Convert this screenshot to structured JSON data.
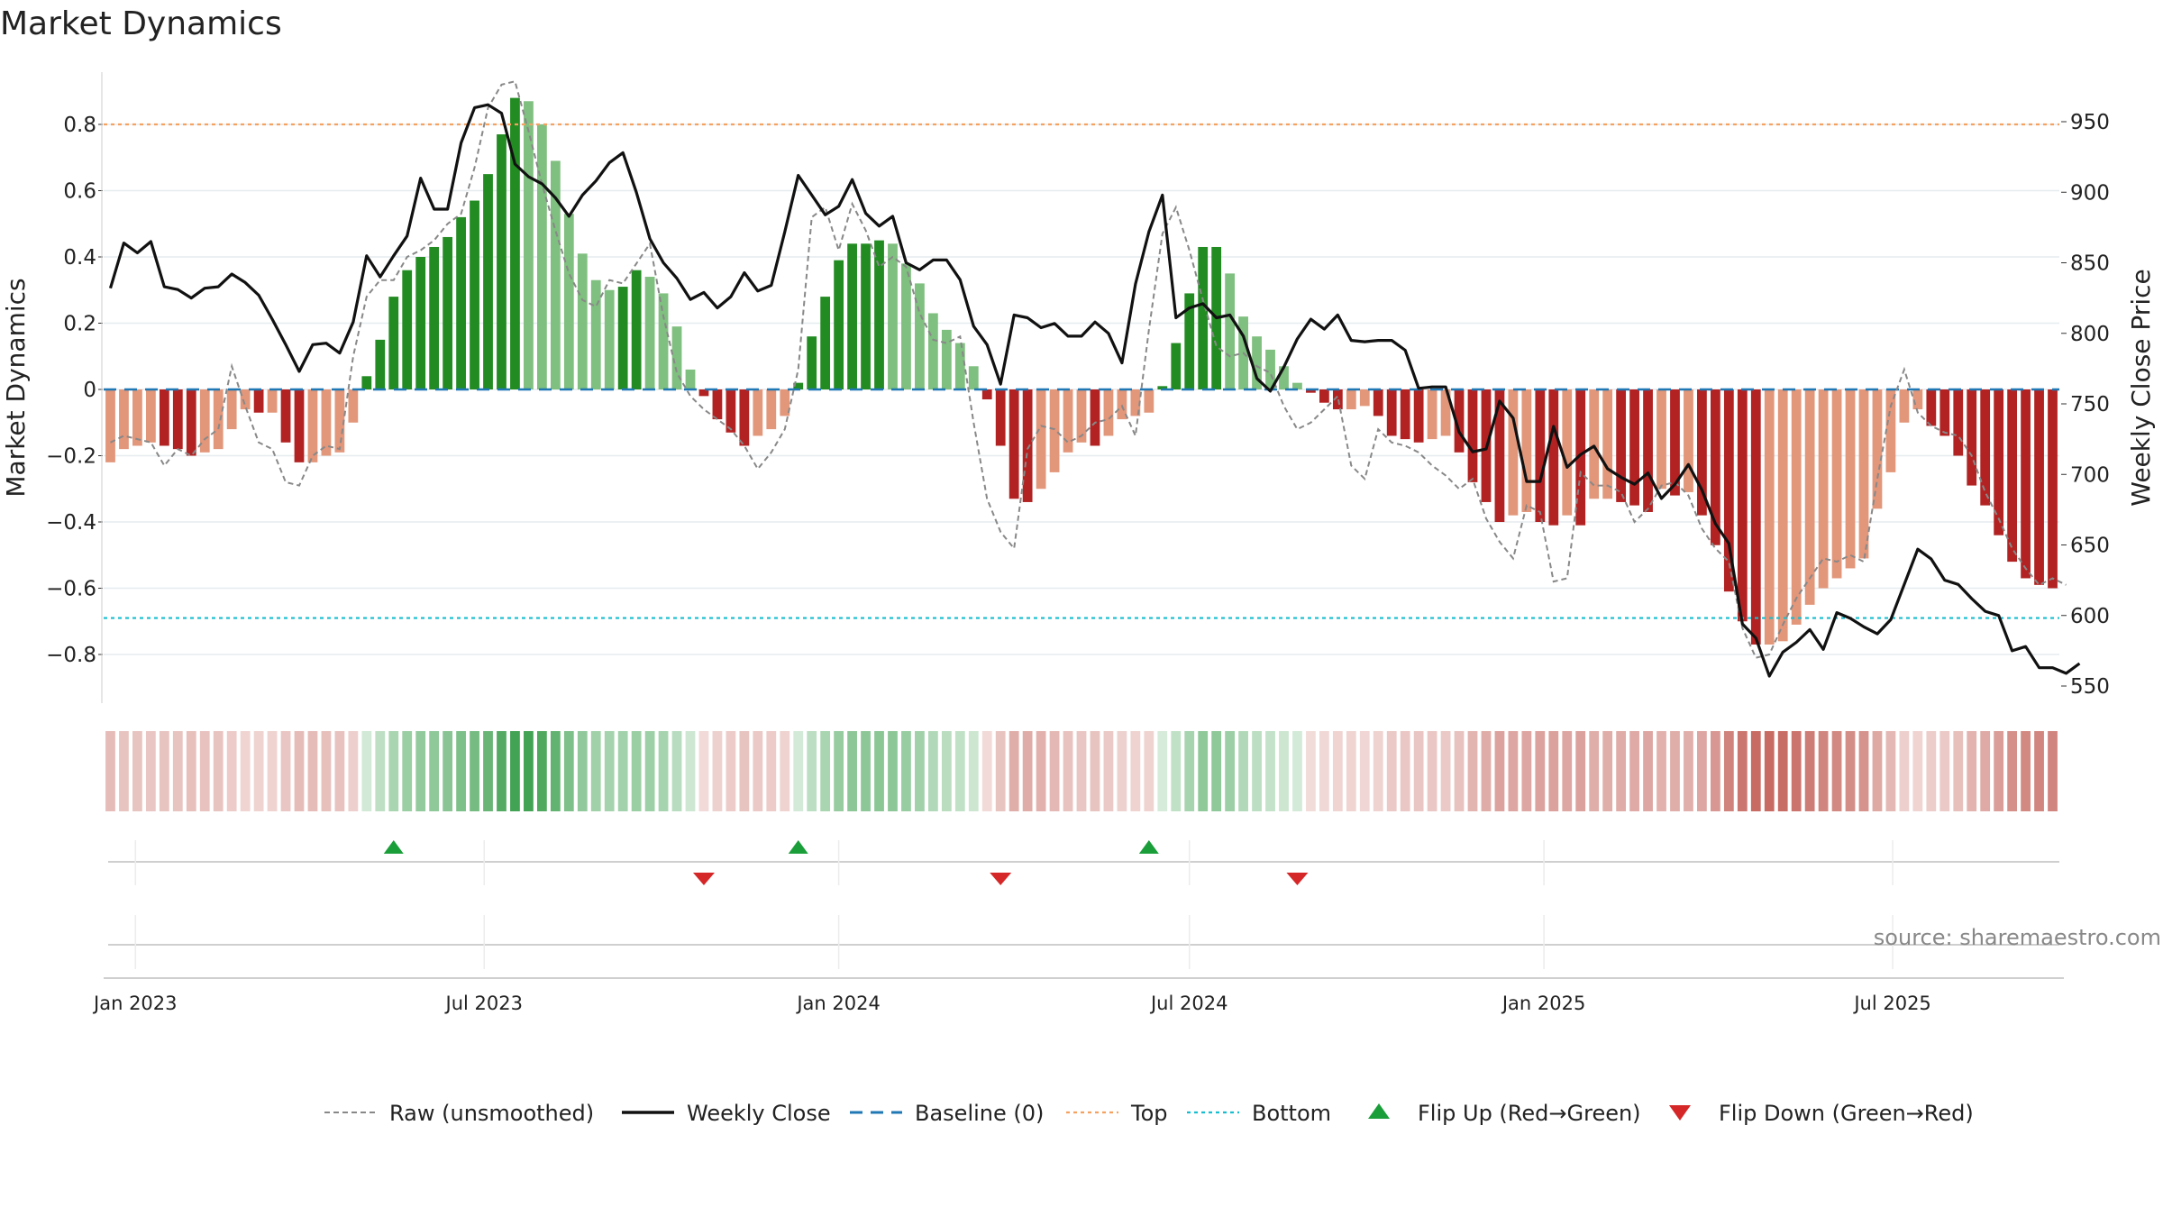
{
  "title": "Market Dynamics",
  "source": "source: sharemaestro.com",
  "chart_data": {
    "type": "bar",
    "title": "Market Dynamics",
    "ylabel": "Market Dynamics",
    "y2label": "Weekly Close Price",
    "ylim": [
      -0.95,
      0.95
    ],
    "y2lim": [
      535,
      985
    ],
    "yticks": [
      "−0.8",
      "−0.6",
      "−0.4",
      "−0.2",
      "0",
      "0.2",
      "0.4",
      "0.6",
      "0.8"
    ],
    "yticks_values": [
      -0.8,
      -0.6,
      -0.4,
      -0.2,
      0,
      0.2,
      0.4,
      0.6,
      0.8
    ],
    "y2ticks": [
      "550",
      "600",
      "650",
      "700",
      "750",
      "800",
      "850",
      "900",
      "950"
    ],
    "y2ticks_values": [
      550,
      600,
      650,
      700,
      750,
      800,
      850,
      900,
      950
    ],
    "xticks": [
      "Jan 2023",
      "Jul 2023",
      "Jan 2024",
      "Jul 2024",
      "Jan 2025",
      "Jul 2025"
    ],
    "xticks_dates": [
      "2023-01-01",
      "2023-07-01",
      "2024-01-01",
      "2024-07-01",
      "2025-01-01",
      "2025-07-01"
    ],
    "start_date": "2022-12-19",
    "top_line": 0.8,
    "bottom_line": -0.69,
    "baseline": 0,
    "grid": true,
    "bars": [
      -0.22,
      -0.18,
      -0.17,
      -0.16,
      -0.17,
      -0.18,
      -0.2,
      -0.19,
      -0.18,
      -0.12,
      -0.06,
      -0.07,
      -0.07,
      -0.16,
      -0.22,
      -0.22,
      -0.2,
      -0.19,
      -0.1,
      0.04,
      0.15,
      0.28,
      0.36,
      0.4,
      0.43,
      0.46,
      0.52,
      0.57,
      0.65,
      0.77,
      0.88,
      0.87,
      0.8,
      0.69,
      0.53,
      0.41,
      0.33,
      0.3,
      0.31,
      0.36,
      0.34,
      0.29,
      0.19,
      0.06,
      -0.02,
      -0.09,
      -0.13,
      -0.17,
      -0.14,
      -0.12,
      -0.08,
      0.02,
      0.16,
      0.28,
      0.39,
      0.44,
      0.44,
      0.45,
      0.44,
      0.38,
      0.32,
      0.23,
      0.18,
      0.14,
      0.07,
      -0.03,
      -0.17,
      -0.33,
      -0.34,
      -0.3,
      -0.25,
      -0.19,
      -0.16,
      -0.17,
      -0.14,
      -0.09,
      -0.08,
      -0.07,
      0.01,
      0.14,
      0.29,
      0.43,
      0.43,
      0.35,
      0.22,
      0.16,
      0.12,
      0.07,
      0.02,
      -0.01,
      -0.04,
      -0.06,
      -0.06,
      -0.05,
      -0.08,
      -0.14,
      -0.15,
      -0.16,
      -0.15,
      -0.14,
      -0.19,
      -0.28,
      -0.34,
      -0.4,
      -0.38,
      -0.37,
      -0.4,
      -0.41,
      -0.38,
      -0.41,
      -0.33,
      -0.33,
      -0.34,
      -0.35,
      -0.37,
      -0.3,
      -0.32,
      -0.31,
      -0.38,
      -0.47,
      -0.61,
      -0.7,
      -0.77,
      -0.77,
      -0.76,
      -0.71,
      -0.65,
      -0.6,
      -0.57,
      -0.54,
      -0.51,
      -0.36,
      -0.25,
      -0.1,
      -0.06,
      -0.11,
      -0.14,
      -0.2,
      -0.29,
      -0.35,
      -0.44,
      -0.52,
      -0.57,
      -0.59,
      -0.6
    ],
    "price": [
      832,
      864,
      857,
      865,
      833,
      831,
      825,
      832,
      833,
      842,
      836,
      827,
      810,
      792,
      773,
      792,
      793,
      786,
      808,
      855,
      840,
      855,
      869,
      910,
      888,
      888,
      935,
      960,
      962,
      956,
      920,
      911,
      906,
      896,
      883,
      898,
      908,
      921,
      928,
      900,
      867,
      850,
      839,
      824,
      829,
      818,
      826,
      843,
      830,
      834,
      872,
      912,
      898,
      884,
      890,
      909,
      885,
      876,
      883,
      850,
      845,
      852,
      852,
      838,
      805,
      792,
      764,
      813,
      811,
      804,
      807,
      798,
      798,
      808,
      800,
      779,
      835,
      872,
      898,
      811,
      818,
      821,
      811,
      813,
      798,
      768,
      759,
      776,
      796,
      810,
      803,
      813,
      795,
      794,
      795,
      795,
      788,
      761,
      762,
      762,
      730,
      716,
      718,
      752,
      740,
      695,
      695,
      734,
      705,
      714,
      720,
      704,
      698,
      693,
      701,
      683,
      693,
      707,
      689,
      665,
      651,
      594,
      584,
      557,
      574,
      581,
      590,
      576,
      602,
      598,
      592,
      587,
      597,
      622,
      647,
      640,
      625,
      622,
      612,
      603,
      600,
      575,
      578,
      563,
      563,
      559,
      566
    ],
    "raw": [
      -0.16,
      -0.14,
      -0.15,
      -0.16,
      -0.23,
      -0.18,
      -0.2,
      -0.15,
      -0.12,
      0.07,
      -0.05,
      -0.16,
      -0.18,
      -0.28,
      -0.29,
      -0.2,
      -0.17,
      -0.18,
      0.1,
      0.28,
      0.33,
      0.33,
      0.4,
      0.42,
      0.45,
      0.5,
      0.53,
      0.67,
      0.85,
      0.92,
      0.93,
      0.78,
      0.62,
      0.48,
      0.35,
      0.27,
      0.25,
      0.33,
      0.32,
      0.38,
      0.44,
      0.22,
      0.05,
      -0.02,
      -0.06,
      -0.09,
      -0.12,
      -0.17,
      -0.24,
      -0.19,
      -0.12,
      0.06,
      0.52,
      0.55,
      0.42,
      0.56,
      0.48,
      0.37,
      0.4,
      0.37,
      0.23,
      0.15,
      0.14,
      0.16,
      -0.1,
      -0.33,
      -0.43,
      -0.48,
      -0.18,
      -0.11,
      -0.12,
      -0.16,
      -0.14,
      -0.1,
      -0.09,
      -0.05,
      -0.14,
      0.18,
      0.47,
      0.55,
      0.42,
      0.27,
      0.13,
      0.1,
      0.11,
      0.07,
      0.05,
      -0.05,
      -0.12,
      -0.1,
      -0.06,
      -0.02,
      -0.23,
      -0.27,
      -0.12,
      -0.16,
      -0.17,
      -0.19,
      -0.23,
      -0.26,
      -0.3,
      -0.27,
      -0.39,
      -0.46,
      -0.51,
      -0.35,
      -0.37,
      -0.58,
      -0.57,
      -0.25,
      -0.29,
      -0.29,
      -0.31,
      -0.4,
      -0.36,
      -0.29,
      -0.28,
      -0.32,
      -0.42,
      -0.48,
      -0.52,
      -0.72,
      -0.81,
      -0.8,
      -0.71,
      -0.63,
      -0.57,
      -0.51,
      -0.52,
      -0.5,
      -0.52,
      -0.27,
      -0.05,
      0.06,
      -0.07,
      -0.11,
      -0.13,
      -0.14,
      -0.2,
      -0.31,
      -0.39,
      -0.48,
      -0.54,
      -0.59,
      -0.57,
      -0.59
    ],
    "flips_up": [
      "2023-05-15",
      "2023-12-11",
      "2024-06-10"
    ],
    "flips_down": [
      "2023-10-23",
      "2024-03-25",
      "2024-08-26"
    ],
    "legend": [
      {
        "label": "Raw (unsmoothed)",
        "kind": "line-dashed-grey"
      },
      {
        "label": "Weekly Close",
        "kind": "line-black"
      },
      {
        "label": "Baseline (0)",
        "kind": "line-dashed-blue"
      },
      {
        "label": "Top",
        "kind": "line-dotted-orange"
      },
      {
        "label": "Bottom",
        "kind": "line-dotted-cyan"
      },
      {
        "label": "Flip Up (Red→Green)",
        "kind": "triangle-up-green"
      },
      {
        "label": "Flip Down (Green→Red)",
        "kind": "triangle-down-red"
      }
    ],
    "colors": {
      "strong_green": "#228b22",
      "light_green": "#7fbf7f",
      "strong_red": "#b22222",
      "light_red": "#e2967a",
      "price_line": "#111111",
      "raw_line": "#888888",
      "baseline": "#1f77b4",
      "top": "#f4a261",
      "bottom": "#17becf",
      "flip_up": "#1a9e3a",
      "flip_down": "#d62728"
    }
  }
}
